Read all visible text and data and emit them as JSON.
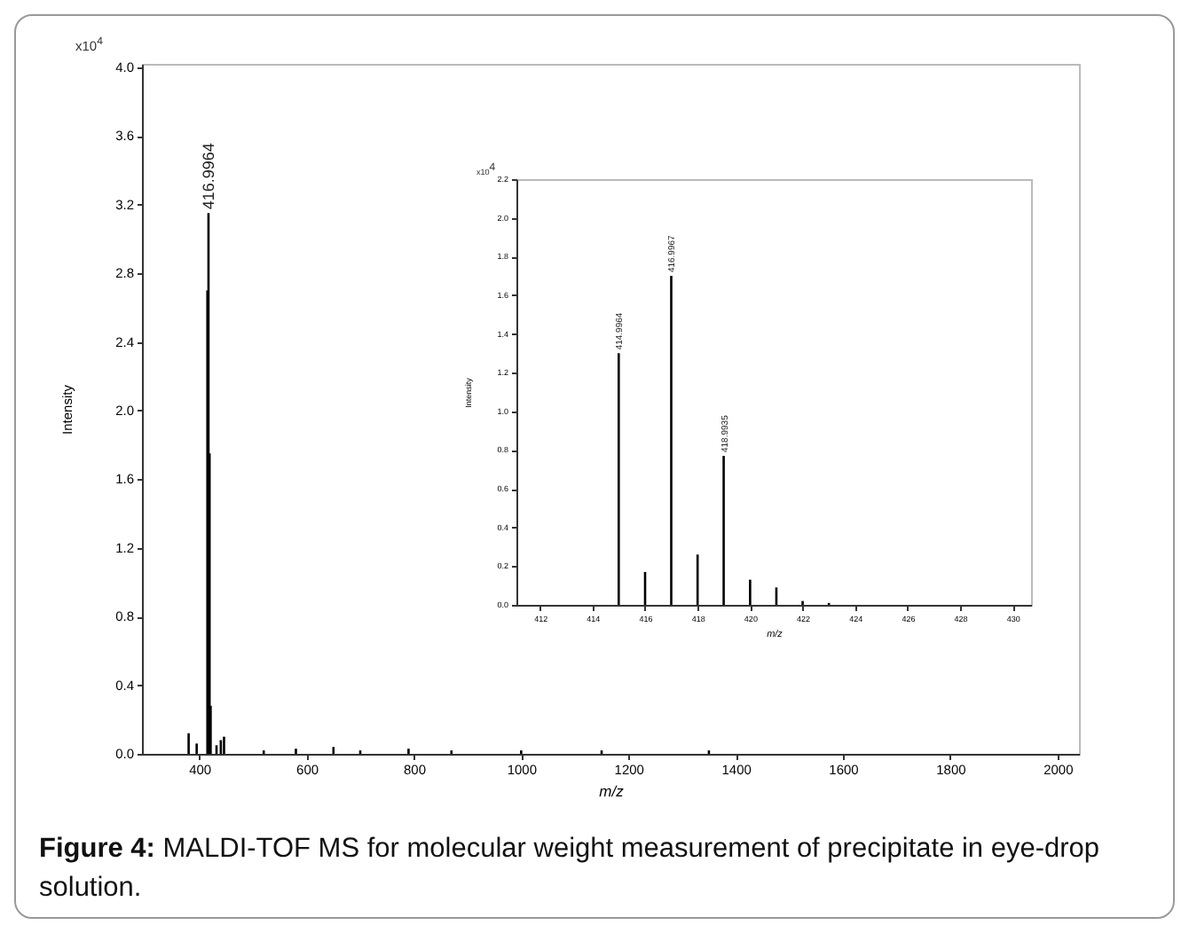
{
  "chart_data": [
    {
      "type": "bar",
      "xlabel": "m/z",
      "ylabel": "Intensity",
      "annotations": [
        "x10$^{4}$",
        {
          "text": "416.9964",
          "x": 417,
          "y": 3.15
        },
        "Figure 4: MALDI-TOF MS for molecular weight measurement of precipitate in eye-drop solution."
      ],
      "x": [
        380,
        395,
        415,
        417,
        419,
        421,
        432,
        440,
        446,
        520,
        580,
        650,
        700,
        790,
        870,
        1000,
        1150,
        1350
      ],
      "values": [
        0.12,
        0.06,
        2.7,
        3.15,
        1.75,
        0.28,
        0.05,
        0.08,
        0.1,
        0.02,
        0.03,
        0.04,
        0.02,
        0.03,
        0.02,
        0.02,
        0.02,
        0.02
      ],
      "color": "#000000",
      "xlim": [
        293,
        2040
      ],
      "ylim": [
        0,
        4.02
      ],
      "xticks": [
        400,
        600,
        800,
        1000,
        1200,
        1400,
        1600,
        1800,
        2000
      ],
      "yticks": [
        {
          "value": 0,
          "label": "0.0"
        },
        {
          "value": 0.4,
          "label": "0.4"
        },
        {
          "value": 0.8,
          "label": "0.8"
        },
        {
          "value": 1.2,
          "label": "1.2"
        },
        {
          "value": 1.6,
          "label": "1.6"
        },
        {
          "value": 2,
          "label": "2.0"
        },
        {
          "value": 2.4,
          "label": "2.4"
        },
        {
          "value": 2.8,
          "label": "2.8"
        },
        {
          "value": 3.2,
          "label": "3.2"
        },
        {
          "value": 3.6,
          "label": "3.6"
        },
        {
          "value": 4,
          "label": "4.0"
        }
      ],
      "grid": false
    },
    {
      "type": "bar",
      "xlabel": "m/z",
      "ylabel": "Intensity",
      "annotations": [
        "x10$^{4}$",
        {
          "text": "414.9964",
          "x": 414.9964,
          "y": 1.3
        },
        {
          "text": "416.9967",
          "x": 416.9967,
          "y": 1.7
        },
        {
          "text": "418.9935",
          "x": 418.9935,
          "y": 0.77
        }
      ],
      "x": [
        414.9964,
        416,
        416.9967,
        418,
        418.9935,
        420,
        421,
        422,
        423
      ],
      "values": [
        1.3,
        0.17,
        1.7,
        0.26,
        0.77,
        0.13,
        0.09,
        0.02,
        0.01
      ],
      "color": "#000000",
      "xlim": [
        411.1,
        430.7
      ],
      "ylim": [
        0,
        2.2
      ],
      "xticks": [
        412,
        414,
        416,
        418,
        420,
        422,
        424,
        426,
        428,
        430
      ],
      "yticks": [
        {
          "value": 0,
          "label": "0.0"
        },
        {
          "value": 0.2,
          "label": "0.2"
        },
        {
          "value": 0.4,
          "label": "0.4"
        },
        {
          "value": 0.6,
          "label": "0.6"
        },
        {
          "value": 0.8,
          "label": "0.8"
        },
        {
          "value": 1,
          "label": "1.0"
        },
        {
          "value": 1.2,
          "label": "1.2"
        },
        {
          "value": 1.4,
          "label": "1.4"
        },
        {
          "value": 1.6,
          "label": "1.6"
        },
        {
          "value": 1.8,
          "label": "1.8"
        },
        {
          "value": 2,
          "label": "2.0"
        },
        {
          "value": 2.2,
          "label": "2.2"
        }
      ],
      "grid": false
    }
  ]
}
